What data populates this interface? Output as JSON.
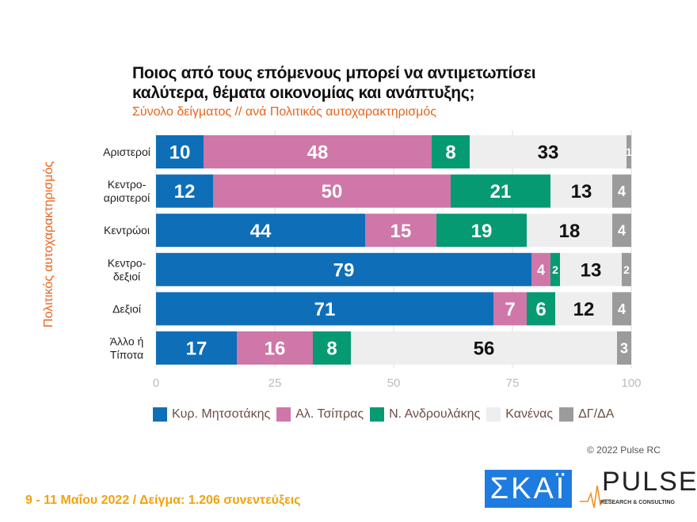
{
  "chart_data": {
    "type": "bar",
    "orientation": "horizontal-stacked",
    "title": "Ποιος από τους επόμενους μπορεί να αντιμετωπίσει καλύτερα, θέματα οικονομίας και ανάπτυξης;",
    "subtitle": "Σύνολο δείγματος // ανά Πολιτικός αυτοχαρακτηρισμός",
    "ylabel": "Πολιτικός αυτοχαρακτηρισμός",
    "xlim": [
      0,
      100
    ],
    "xticks": [
      "0",
      "25",
      "50",
      "75",
      "100"
    ],
    "categories": [
      [
        "Αριστεροί"
      ],
      [
        "Κεντρο-",
        "αριστεροί"
      ],
      [
        "Κεντρώοι"
      ],
      [
        "Κεντρο-",
        "δεξιοί"
      ],
      [
        "Δεξιοί"
      ],
      [
        "Άλλο ή",
        "Τίποτα"
      ]
    ],
    "series": [
      {
        "name": "Κυρ. Μητσοτάκης",
        "color": "#0e6eb8",
        "values": [
          10,
          12,
          44,
          79,
          71,
          17
        ]
      },
      {
        "name": "Αλ. Τσίπρας",
        "color": "#cf77a8",
        "values": [
          48,
          50,
          15,
          4,
          7,
          16
        ]
      },
      {
        "name": "Ν. Ανδρουλάκης",
        "color": "#069a72",
        "values": [
          8,
          21,
          19,
          2,
          6,
          8
        ]
      },
      {
        "name": "Κανένας",
        "color": "#eeeeee",
        "values": [
          33,
          13,
          18,
          13,
          12,
          56
        ]
      },
      {
        "name": "ΔΓ/ΔΑ",
        "color": "#9b9b9b",
        "values": [
          1,
          4,
          4,
          2,
          4,
          3
        ]
      }
    ],
    "legend": "bottom",
    "grid": true
  },
  "footer": {
    "copyright": "© 2022 Pulse RC",
    "note": "9 - 11  Μαΐου  2022  /  Δείγμα:  1.206 συνεντεύξεις"
  },
  "logos": {
    "skai": "ΣΚΑΪ",
    "pulse": "PULSE",
    "pulse_sub": "RESEARCH & CONSULTING"
  }
}
